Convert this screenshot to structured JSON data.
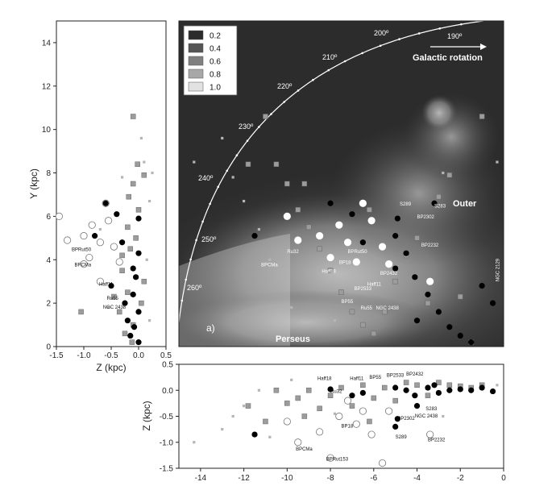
{
  "chart_data": [
    {
      "id": "left-panel",
      "type": "scatter",
      "xlabel": "Z (kpc)",
      "ylabel": "Y (kpc)",
      "xlim": [
        -1.5,
        0.5
      ],
      "ylim": [
        0,
        15
      ],
      "xticks": [
        "-1.5",
        "-1.0",
        "-0.5",
        "0.0",
        "0.5"
      ],
      "yticks": [
        "0",
        "2",
        "4",
        "6",
        "8",
        "10",
        "12",
        "14"
      ],
      "labels": [
        {
          "text": "BPRut50",
          "x": -1.22,
          "y": 4.4
        },
        {
          "text": "BPCMa",
          "x": -1.17,
          "y": 3.7
        },
        {
          "text": "Haff11",
          "x": -0.72,
          "y": 2.8
        },
        {
          "text": "Ru55",
          "x": -0.58,
          "y": 2.15
        },
        {
          "text": "NGC 2438",
          "x": -0.65,
          "y": 1.75
        }
      ],
      "series": [
        {
          "marker": "filled-black",
          "points": [
            [
              -0.8,
              5.1
            ],
            [
              -0.6,
              6.6
            ],
            [
              -0.4,
              6.1
            ],
            [
              -0.3,
              4.8
            ],
            [
              -0.1,
              3.6
            ],
            [
              0.0,
              4.3
            ],
            [
              -0.05,
              3.2
            ],
            [
              -0.1,
              2.4
            ],
            [
              0.0,
              1.6
            ],
            [
              -0.08,
              0.9
            ],
            [
              -0.15,
              0.5
            ],
            [
              0.0,
              0.2
            ],
            [
              -0.5,
              2.8
            ],
            [
              -0.25,
              2.0
            ],
            [
              0.0,
              5.9
            ],
            [
              -0.2,
              1.2
            ]
          ]
        },
        {
          "marker": "open-circle",
          "points": [
            [
              -1.45,
              6.0
            ],
            [
              -1.3,
              4.9
            ],
            [
              -1.0,
              5.1
            ],
            [
              -0.9,
              4.1
            ],
            [
              -0.85,
              5.6
            ],
            [
              -0.7,
              4.8
            ],
            [
              -0.6,
              6.6
            ],
            [
              -0.55,
              5.8
            ],
            [
              -0.45,
              4.6
            ],
            [
              -0.35,
              3.9
            ],
            [
              -1.0,
              3.8
            ],
            [
              -0.7,
              3.0
            ]
          ]
        },
        {
          "marker": "grey-square",
          "points": [
            [
              -0.1,
              10.6
            ],
            [
              -0.02,
              8.4
            ],
            [
              -0.1,
              7.5
            ],
            [
              0.0,
              6.3
            ],
            [
              -0.2,
              5.5
            ],
            [
              -0.15,
              4.5
            ],
            [
              -0.3,
              3.5
            ],
            [
              -0.2,
              2.5
            ],
            [
              -0.35,
              1.6
            ],
            [
              -0.1,
              1.0
            ],
            [
              -0.25,
              0.6
            ],
            [
              -1.05,
              1.6
            ],
            [
              0.1,
              3.0
            ],
            [
              -0.3,
              4.2
            ],
            [
              -0.05,
              5.0
            ],
            [
              0.05,
              2.0
            ],
            [
              -0.18,
              6.9
            ],
            [
              0.1,
              7.9
            ],
            [
              -0.45,
              2.3
            ],
            [
              -0.12,
              0.2
            ]
          ]
        },
        {
          "marker": "small-grey",
          "points": [
            [
              0.1,
              8.5
            ],
            [
              0.05,
              9.6
            ],
            [
              -0.3,
              7.8
            ],
            [
              0.2,
              6.7
            ],
            [
              -0.7,
              5.4
            ],
            [
              0.15,
              4.0
            ],
            [
              -0.55,
              1.8
            ],
            [
              0.2,
              1.2
            ],
            [
              0.25,
              8.0
            ]
          ]
        }
      ]
    },
    {
      "id": "main-panel",
      "type": "heatmap",
      "panel_label": "a)",
      "legend_placement": "top-left",
      "legend": [
        "0.2",
        "0.4",
        "0.6",
        "0.8",
        "1.0"
      ],
      "longitudes": [
        "190º",
        "200º",
        "210º",
        "220º",
        "230º",
        "240º",
        "250º",
        "260º"
      ],
      "annotations": [
        "Galactic rotation",
        "Outer",
        "Perseus"
      ],
      "cluster_labels": [
        {
          "text": "S289",
          "x": -4.8,
          "y": 6.5
        },
        {
          "text": "S283",
          "x": -3.2,
          "y": 6.4
        },
        {
          "text": "BP2302",
          "x": -4.0,
          "y": 5.9
        },
        {
          "text": "BP2232",
          "x": -3.8,
          "y": 4.6
        },
        {
          "text": "BPCMa",
          "x": -11.2,
          "y": 3.7
        },
        {
          "text": "Ru32",
          "x": -10.0,
          "y": 4.3
        },
        {
          "text": "BPRut50",
          "x": -7.2,
          "y": 4.3
        },
        {
          "text": "BP18",
          "x": -7.6,
          "y": 3.8
        },
        {
          "text": "Haff18",
          "x": -8.4,
          "y": 3.4
        },
        {
          "text": "BP2432",
          "x": -5.7,
          "y": 3.3
        },
        {
          "text": "Haff11",
          "x": -6.3,
          "y": 2.8
        },
        {
          "text": "BP2533",
          "x": -6.9,
          "y": 2.6
        },
        {
          "text": "BP55",
          "x": -7.5,
          "y": 2.0
        },
        {
          "text": "Ru55",
          "x": -6.6,
          "y": 1.7
        },
        {
          "text": "NGC 2438",
          "x": -5.9,
          "y": 1.7
        },
        {
          "text": "NGC 2129",
          "x": -0.2,
          "y": 3.0
        }
      ]
    },
    {
      "id": "bottom-panel",
      "type": "scatter",
      "xlabel": "",
      "ylabel": "Z (kpc)",
      "xlim": [
        -15,
        0
      ],
      "ylim": [
        -1.5,
        0.5
      ],
      "xticks": [
        "-14",
        "-12",
        "-10",
        "-8",
        "-6",
        "-4",
        "-2",
        "0"
      ],
      "yticks": [
        "0.5",
        "0.0",
        "-0.5",
        "-1.0",
        "-1.5"
      ],
      "labels": [
        {
          "text": "Haff18",
          "x": -8.6,
          "y": 0.2
        },
        {
          "text": "Haff11",
          "x": -7.1,
          "y": 0.2
        },
        {
          "text": "BP55",
          "x": -6.2,
          "y": 0.22
        },
        {
          "text": "BP2533",
          "x": -5.4,
          "y": 0.26
        },
        {
          "text": "BP2432",
          "x": -4.5,
          "y": 0.28
        },
        {
          "text": "Ru32",
          "x": -8.0,
          "y": -0.05
        },
        {
          "text": "BP2302",
          "x": -4.9,
          "y": -0.57
        },
        {
          "text": "NGC 2438",
          "x": -4.1,
          "y": -0.52
        },
        {
          "text": "S283",
          "x": -3.6,
          "y": -0.38
        },
        {
          "text": "BP18",
          "x": -7.5,
          "y": -0.72
        },
        {
          "text": "S289",
          "x": -5.0,
          "y": -0.93
        },
        {
          "text": "BP2232",
          "x": -3.5,
          "y": -0.98
        },
        {
          "text": "BPCMa",
          "x": -9.6,
          "y": -1.16
        },
        {
          "text": "BPRut153",
          "x": -8.2,
          "y": -1.35
        }
      ],
      "series": [
        {
          "marker": "filled-black",
          "points": [
            [
              -11.5,
              -0.85
            ],
            [
              -8.0,
              0.02
            ],
            [
              -7.0,
              -0.1
            ],
            [
              -6.5,
              -0.05
            ],
            [
              -5.0,
              0.05
            ],
            [
              -4.5,
              0.0
            ],
            [
              -4.1,
              -0.1
            ],
            [
              -3.5,
              0.05
            ],
            [
              -3.0,
              -0.05
            ],
            [
              -2.5,
              0.0
            ],
            [
              -2.0,
              0.02
            ],
            [
              -1.5,
              0.0
            ],
            [
              -1.0,
              0.05
            ],
            [
              -0.5,
              -0.02
            ],
            [
              -4.9,
              -0.55
            ],
            [
              -4.0,
              -0.3
            ],
            [
              -5.0,
              -0.7
            ],
            [
              -3.2,
              0.1
            ]
          ]
        },
        {
          "marker": "open-circle",
          "points": [
            [
              -10.0,
              -0.6
            ],
            [
              -9.5,
              -1.0
            ],
            [
              -8.5,
              -0.8
            ],
            [
              -8.0,
              -1.3
            ],
            [
              -7.6,
              -0.5
            ],
            [
              -7.2,
              -0.2
            ],
            [
              -6.5,
              -0.4
            ],
            [
              -6.1,
              -0.85
            ],
            [
              -5.6,
              -1.4
            ],
            [
              -6.8,
              -0.65
            ],
            [
              -5.3,
              -0.4
            ],
            [
              -3.4,
              -0.85
            ]
          ]
        },
        {
          "marker": "grey-square",
          "points": [
            [
              -11.0,
              -0.6
            ],
            [
              -10.5,
              0.0
            ],
            [
              -10.0,
              -0.25
            ],
            [
              -9.5,
              -0.15
            ],
            [
              -9.0,
              0.0
            ],
            [
              -8.5,
              -0.35
            ],
            [
              -8.0,
              -0.1
            ],
            [
              -7.5,
              0.05
            ],
            [
              -7.0,
              -0.3
            ],
            [
              -6.5,
              0.1
            ],
            [
              -6.0,
              -0.15
            ],
            [
              -5.5,
              0.05
            ],
            [
              -5.0,
              -0.2
            ],
            [
              -4.5,
              0.15
            ],
            [
              -4.0,
              0.1
            ],
            [
              -3.5,
              -0.1
            ],
            [
              -3.0,
              0.15
            ],
            [
              -2.5,
              0.1
            ],
            [
              -2.0,
              0.08
            ],
            [
              -1.5,
              0.05
            ],
            [
              -1.0,
              0.1
            ],
            [
              -11.8,
              -0.3
            ],
            [
              -9.2,
              -0.5
            ],
            [
              -6.2,
              -0.6
            ]
          ]
        },
        {
          "marker": "small-grey",
          "points": [
            [
              -14.3,
              -1.0
            ],
            [
              -13.0,
              -0.75
            ],
            [
              -12.5,
              -0.5
            ],
            [
              -12.0,
              -0.3
            ],
            [
              -11.3,
              0.0
            ],
            [
              -10.8,
              -0.9
            ],
            [
              -9.8,
              0.2
            ],
            [
              -7.8,
              -0.45
            ],
            [
              -2.8,
              -0.5
            ],
            [
              -0.3,
              0.1
            ]
          ]
        }
      ]
    }
  ]
}
